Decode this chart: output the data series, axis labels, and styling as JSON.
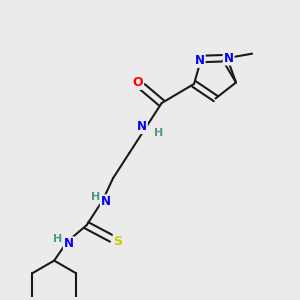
{
  "background_color": "#ebebeb",
  "bond_color": "#1a1a1a",
  "atom_colors": {
    "N": "#0000ff",
    "O": "#ff0000",
    "S": "#cccc00",
    "C": "#1a1a1a",
    "H": "#4a9a8a"
  },
  "figsize": [
    3.0,
    3.0
  ],
  "dpi": 100
}
